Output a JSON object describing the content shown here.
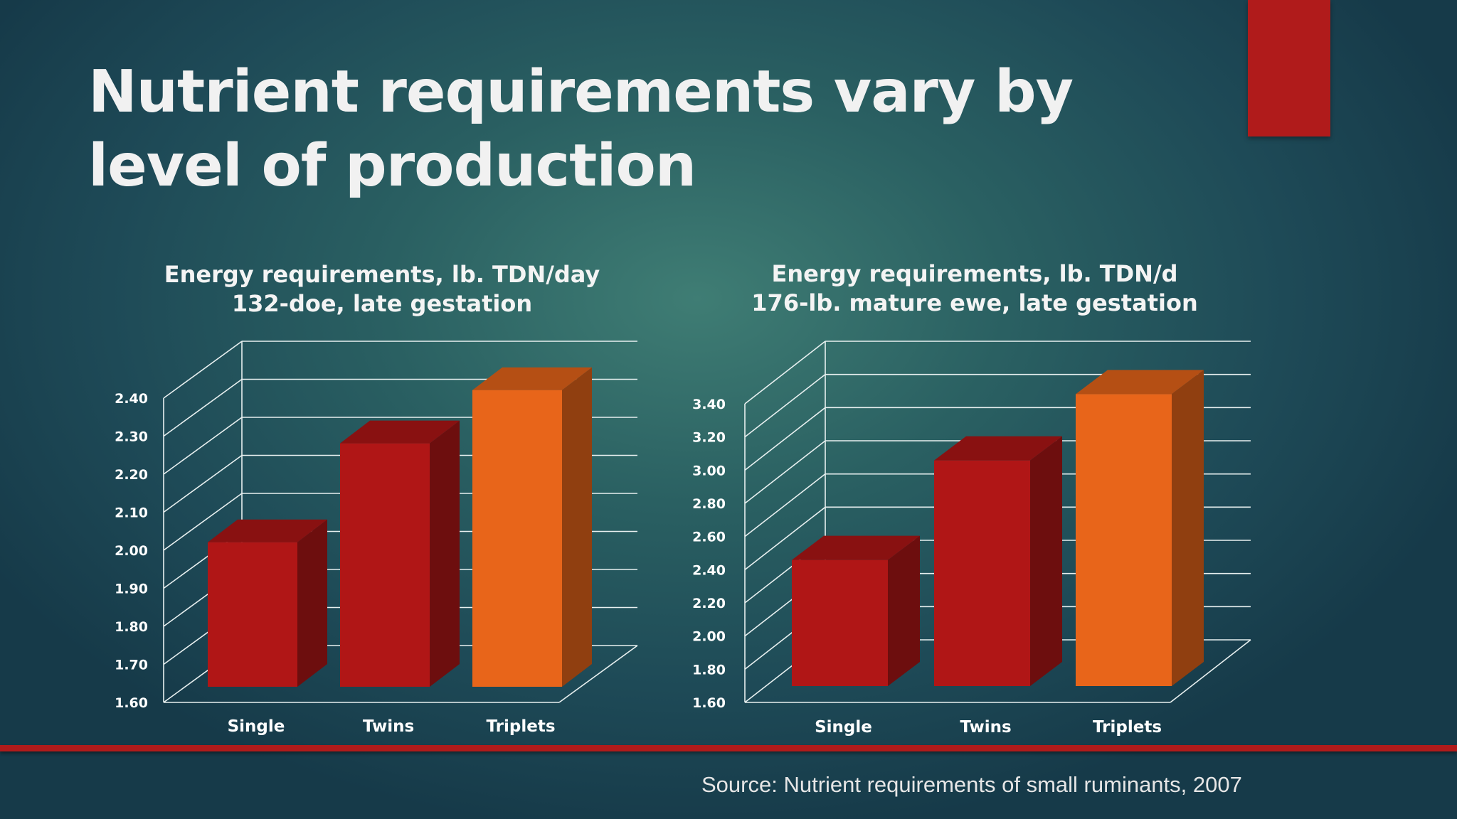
{
  "slide": {
    "title": "Nutrient requirements vary by level of production",
    "source": "Source:  Nutrient requirements of small ruminants, 2007"
  },
  "colors": {
    "accent_red": "#b01b1b",
    "bar_red": "#b01616",
    "bar_orange": "#e8651a",
    "grid": "#e8f0f0"
  },
  "chart_data": [
    {
      "type": "bar",
      "title_lines": [
        "Energy requirements, lb. TDN/day",
        "132-doe, late gestation"
      ],
      "categories": [
        "Single",
        "Twins",
        "Triplets"
      ],
      "values": [
        1.98,
        2.24,
        2.38
      ],
      "bar_colors": [
        "#b01616",
        "#b01616",
        "#e8651a"
      ],
      "ylim": [
        1.6,
        2.4
      ],
      "yticks": [
        "1.60",
        "1.70",
        "1.80",
        "1.90",
        "2.00",
        "2.10",
        "2.20",
        "2.30",
        "2.40"
      ],
      "grid": true,
      "style": "3d"
    },
    {
      "type": "bar",
      "title_lines": [
        "Energy requirements, lb. TDN/d",
        "176-lb. mature ewe, late gestation"
      ],
      "categories": [
        "Single",
        "Twins",
        "Triplets"
      ],
      "values": [
        2.36,
        2.96,
        3.36
      ],
      "bar_colors": [
        "#b01616",
        "#b01616",
        "#e8651a"
      ],
      "ylim": [
        1.6,
        3.4
      ],
      "yticks": [
        "1.60",
        "1.80",
        "2.00",
        "2.20",
        "2.40",
        "2.60",
        "2.80",
        "3.00",
        "3.20",
        "3.40"
      ],
      "grid": true,
      "style": "3d"
    }
  ]
}
